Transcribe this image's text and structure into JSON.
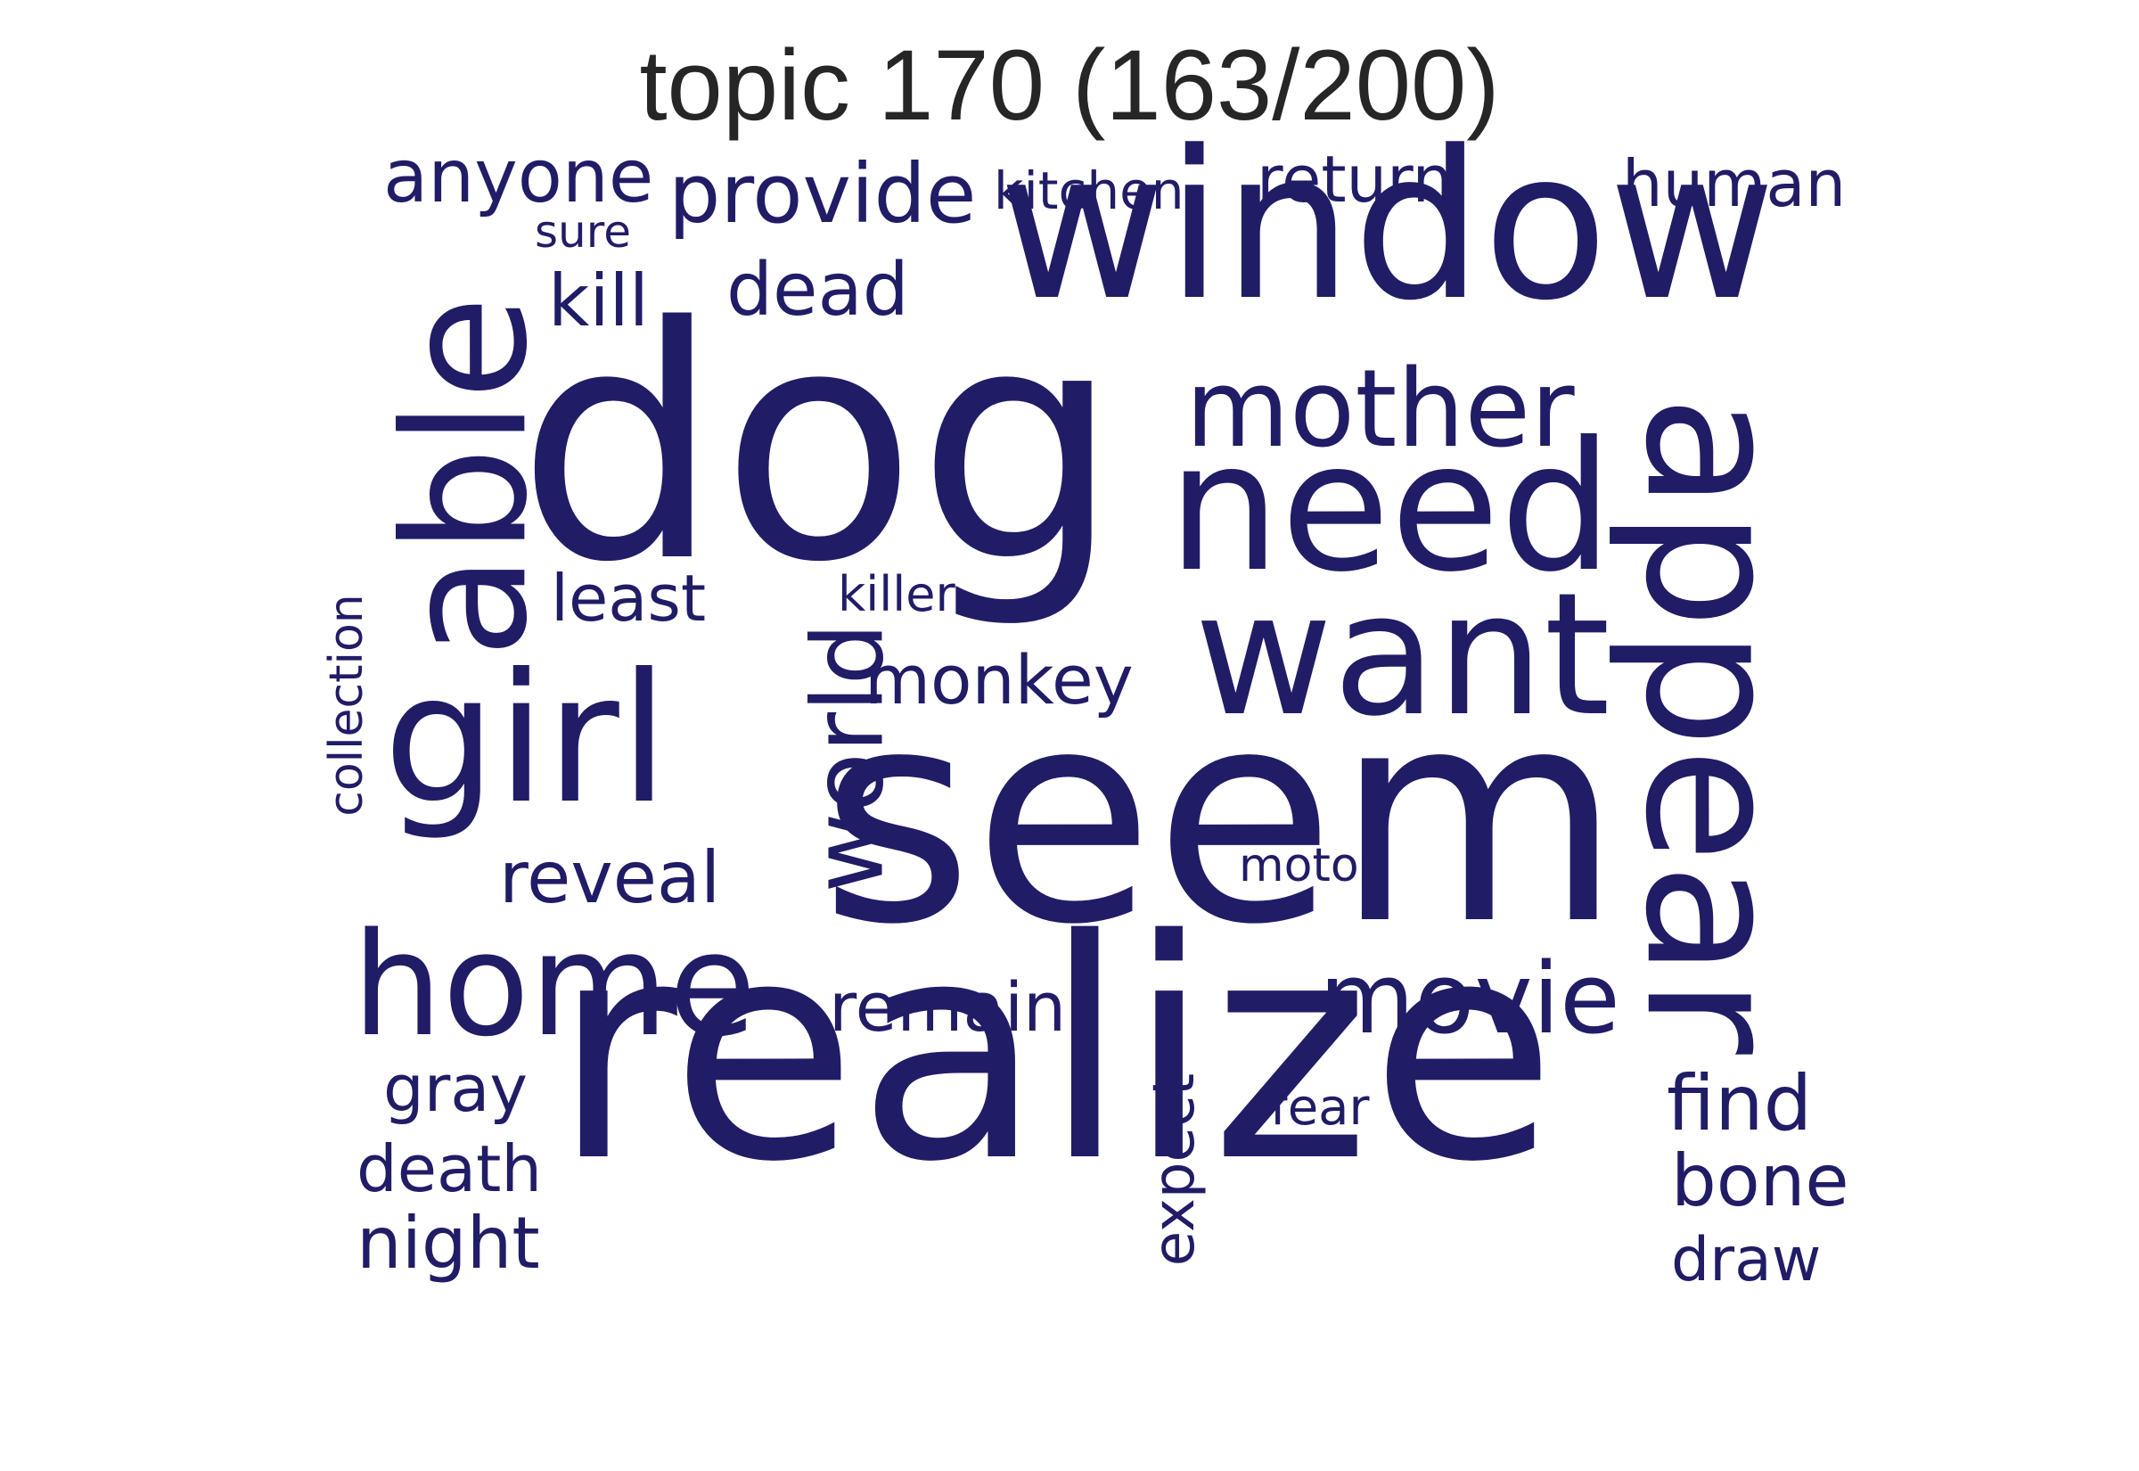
{
  "title": "topic 170 (163/200)",
  "color": "#211c66",
  "words": [
    "seem",
    "realize",
    "dog",
    "window",
    "appear",
    "need",
    "want",
    "able",
    "girl",
    "home",
    "mother",
    "movie",
    "world",
    "provide",
    "anyone",
    "return",
    "human",
    "remain",
    "monkey",
    "dead",
    "kill",
    "least",
    "reveal",
    "find",
    "bone",
    "night",
    "death",
    "gray",
    "draw",
    "expect",
    "kitchen",
    "collection",
    "killer",
    "motor",
    "sure",
    "fear"
  ]
}
